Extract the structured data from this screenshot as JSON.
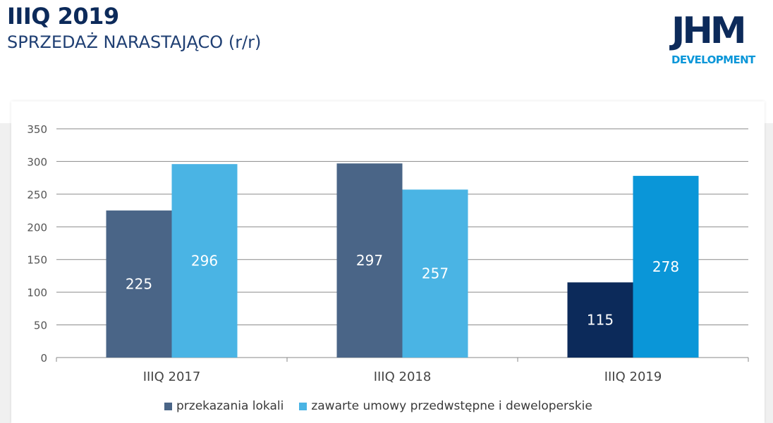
{
  "header": {
    "title": "IIIQ 2019",
    "subtitle": "SPRZEDAŻ NARASTAJĄCO (r/r)"
  },
  "logo": {
    "mark": "JHM",
    "sub": "DEVELOPMENT",
    "mark_color": "#0c2a5a",
    "sub_color": "#0a96d8"
  },
  "chart_data": {
    "type": "bar",
    "categories": [
      "IIIQ 2017",
      "IIIQ 2018",
      "IIIQ 2019"
    ],
    "series": [
      {
        "name": "przekazania lokali",
        "values": [
          225,
          297,
          115
        ],
        "colors": [
          "#4a6587",
          "#4a6587",
          "#0c2a5a"
        ],
        "legend_color": "#4a6587"
      },
      {
        "name": "zawarte umowy przedwstępne i deweloperskie",
        "values": [
          296,
          257,
          278
        ],
        "colors": [
          "#4ab4e4",
          "#4ab4e4",
          "#0a96d8"
        ],
        "legend_color": "#4ab4e4"
      }
    ],
    "ylim": [
      0,
      350
    ],
    "yticks": [
      0,
      50,
      100,
      150,
      200,
      250,
      300,
      350
    ],
    "grid": true,
    "data_labels": true,
    "legend_position": "bottom"
  }
}
